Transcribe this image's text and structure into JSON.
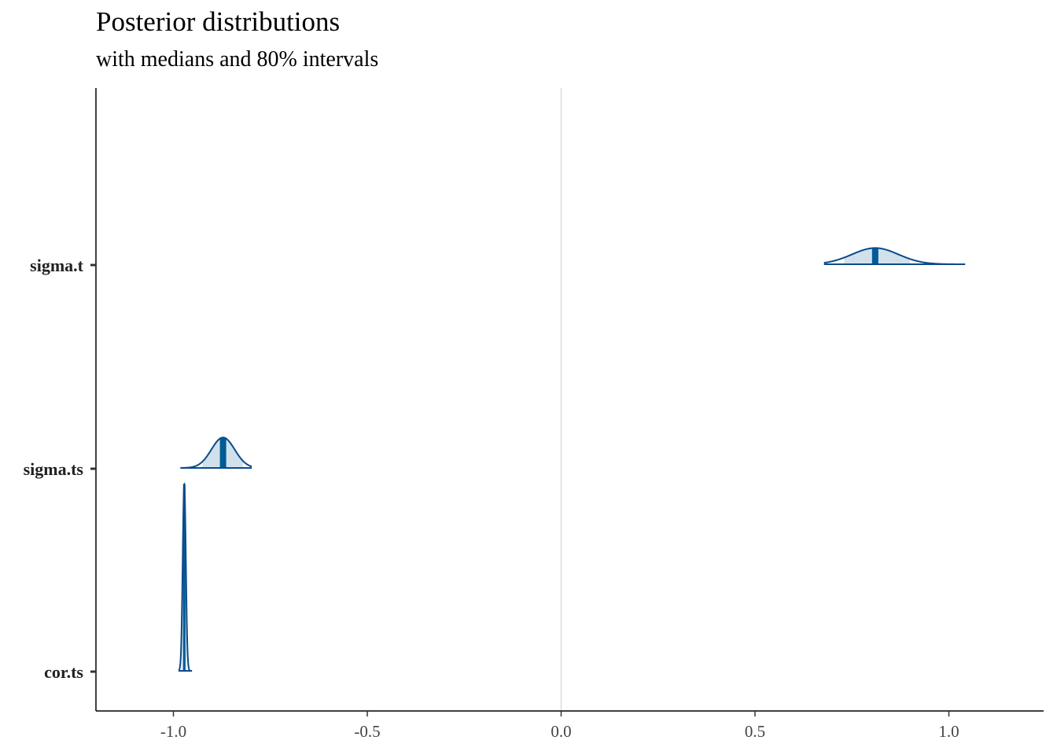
{
  "title": "Posterior distributions",
  "subtitle": "with medians and 80% intervals",
  "chart_data": {
    "type": "density_ridges",
    "title": "Posterior distributions",
    "subtitle": "with medians and 80% intervals",
    "xlabel": "",
    "ylabel": "",
    "xlim": [
      -1.2,
      1.24
    ],
    "x_ticks": [
      -1.0,
      -0.5,
      0.0,
      0.5,
      1.0
    ],
    "x_tick_labels": [
      "-1.0",
      "-0.5",
      "0.0",
      "0.5",
      "1.0"
    ],
    "vline": 0.0,
    "interval_prob": 0.8,
    "grid": false,
    "colors": {
      "outline": "#0b4a8a",
      "interval_fill": "#d1e1ec",
      "median": "#005b96",
      "vline": "#dcdcdc",
      "axis": "#000000"
    },
    "parameters": [
      {
        "name": "sigma.t",
        "min": 0.68,
        "max": 1.04,
        "median": 0.81,
        "interval": [
          0.73,
          0.9
        ],
        "sd": 0.06,
        "peak_height": 0.08
      },
      {
        "name": "sigma.ts",
        "min": -0.98,
        "max": -0.8,
        "median": -0.872,
        "interval": [
          -0.925,
          -0.82
        ],
        "sd": 0.03,
        "peak_height": 0.15
      },
      {
        "name": "cor.ts",
        "min": -0.985,
        "max": -0.952,
        "median": -0.972,
        "interval": [
          -0.978,
          -0.966
        ],
        "sd": 0.004,
        "peak_height": 0.92
      }
    ]
  }
}
